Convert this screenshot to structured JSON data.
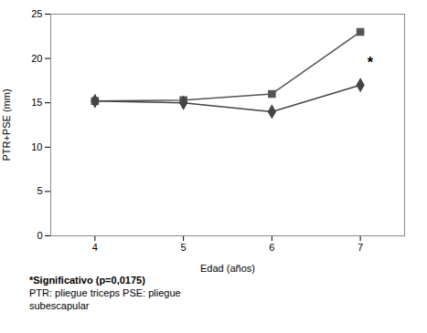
{
  "chart_data": {
    "type": "line",
    "x": [
      4,
      5,
      6,
      7
    ],
    "series": [
      {
        "color": "#555555",
        "marker": "square",
        "values": [
          15.2,
          15.3,
          16.0,
          23.0
        ]
      },
      {
        "color": "#444444",
        "marker": "diamond",
        "values": [
          15.2,
          15.0,
          14.0,
          17.0
        ]
      }
    ],
    "xlabel": "Edad (años)",
    "ylabel": "PTR+PSE (mm)",
    "xlim": [
      3.5,
      7.5
    ],
    "ylim": [
      0,
      25
    ],
    "xticks": [
      4,
      5,
      6,
      7
    ],
    "yticks": [
      0,
      5,
      10,
      15,
      20,
      25
    ],
    "grid": false,
    "annotations": [
      {
        "text": "*",
        "x": 7.08,
        "y": 19.5
      },
      {
        "text": "*Significativo (p=0,0175)"
      },
      {
        "text": "PTR: pliegue triceps   PSE: pliegue"
      },
      {
        "text": "subescapular"
      }
    ]
  }
}
